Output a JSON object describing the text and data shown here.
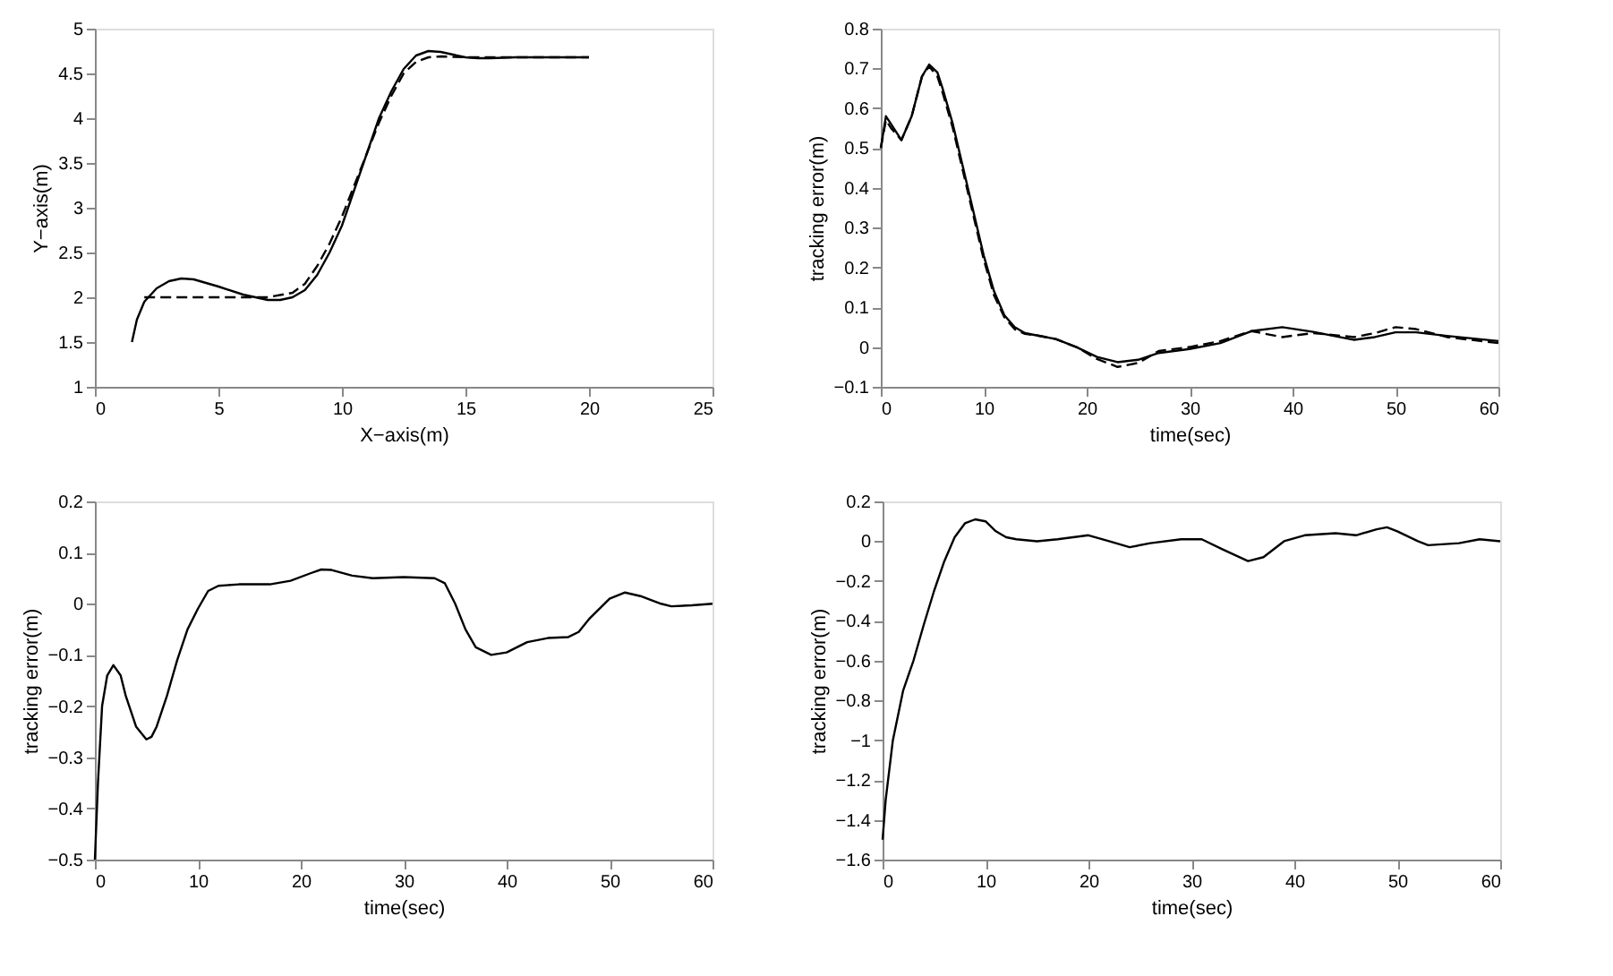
{
  "chart_data": [
    {
      "type": "line",
      "xlabel": "X−axis(m)",
      "ylabel": "Y−axis(m)",
      "xlim": [
        0,
        25
      ],
      "xticks": [
        0,
        5,
        10,
        15,
        20,
        25
      ],
      "ylim": [
        1,
        5
      ],
      "yticks": [
        1,
        1.5,
        2,
        2.5,
        3,
        3.5,
        4,
        4.5,
        5
      ],
      "grid": false,
      "legend": false,
      "series": [
        {
          "color": "#000000",
          "line_style": "solid",
          "x": [
            1.5,
            1.7,
            2,
            2.5,
            3,
            3.5,
            4,
            5,
            6,
            7,
            7.5,
            8,
            8.5,
            9,
            9.5,
            10,
            10.5,
            11,
            11.5,
            12,
            12.5,
            13,
            13.5,
            14,
            14.5,
            15,
            15.5,
            16,
            17,
            18,
            20
          ],
          "values": [
            1.5,
            1.75,
            1.95,
            2.1,
            2.18,
            2.21,
            2.2,
            2.12,
            2.03,
            1.97,
            1.97,
            2.0,
            2.08,
            2.25,
            2.5,
            2.8,
            3.2,
            3.6,
            4.0,
            4.3,
            4.55,
            4.7,
            4.75,
            4.74,
            4.71,
            4.68,
            4.67,
            4.67,
            4.68,
            4.68,
            4.68
          ]
        },
        {
          "color": "#000000",
          "line_style": "dashed",
          "x": [
            2,
            4,
            6,
            7,
            8,
            8.5,
            9,
            9.5,
            10,
            10.5,
            11,
            11.5,
            12,
            12.5,
            13,
            13.5,
            14,
            15,
            16,
            20
          ],
          "values": [
            2.0,
            2.0,
            2.0,
            2.0,
            2.05,
            2.15,
            2.35,
            2.6,
            2.9,
            3.25,
            3.6,
            3.95,
            4.25,
            4.5,
            4.63,
            4.68,
            4.69,
            4.68,
            4.68,
            4.68
          ]
        }
      ]
    },
    {
      "type": "line",
      "xlabel": "time(sec)",
      "ylabel": "tracking error(m)",
      "xlim": [
        0,
        60
      ],
      "xticks": [
        0,
        10,
        20,
        30,
        40,
        50,
        60
      ],
      "ylim": [
        -0.1,
        0.8
      ],
      "yticks": [
        -0.1,
        0,
        0.1,
        0.2,
        0.3,
        0.4,
        0.5,
        0.6,
        0.7,
        0.8
      ],
      "grid": false,
      "legend": false,
      "series": [
        {
          "color": "#000000",
          "line_style": "solid",
          "x": [
            0,
            0.5,
            1,
            2,
            3,
            4,
            4.7,
            5.5,
            6,
            7,
            8,
            9,
            10,
            11,
            12,
            13,
            14,
            15,
            17,
            19,
            21,
            23,
            25,
            27,
            30,
            33,
            36,
            39,
            42,
            46,
            48,
            50,
            52,
            55,
            60
          ],
          "values": [
            0.5,
            0.58,
            0.56,
            0.52,
            0.58,
            0.68,
            0.71,
            0.69,
            0.65,
            0.56,
            0.45,
            0.34,
            0.23,
            0.14,
            0.08,
            0.05,
            0.035,
            0.03,
            0.02,
            0.0,
            -0.025,
            -0.038,
            -0.032,
            -0.015,
            -0.005,
            0.01,
            0.04,
            0.05,
            0.038,
            0.018,
            0.025,
            0.037,
            0.037,
            0.028,
            0.015
          ]
        },
        {
          "color": "#000000",
          "line_style": "dashed",
          "x": [
            0,
            0.5,
            1,
            2,
            3,
            4,
            4.7,
            5.5,
            6,
            7,
            8,
            9,
            10,
            11,
            12,
            13,
            14,
            15,
            17,
            19,
            21,
            23,
            25,
            27,
            30,
            33,
            36,
            39,
            42,
            46,
            48,
            50,
            52,
            55,
            60
          ],
          "values": [
            0.5,
            0.57,
            0.55,
            0.52,
            0.58,
            0.68,
            0.705,
            0.68,
            0.64,
            0.55,
            0.44,
            0.33,
            0.22,
            0.13,
            0.075,
            0.045,
            0.033,
            0.03,
            0.02,
            0.0,
            -0.03,
            -0.05,
            -0.04,
            -0.01,
            0.0,
            0.015,
            0.04,
            0.025,
            0.035,
            0.025,
            0.035,
            0.05,
            0.045,
            0.025,
            0.01
          ]
        }
      ]
    },
    {
      "type": "line",
      "xlabel": "time(sec)",
      "ylabel": "tracking error(m)",
      "xlim": [
        0,
        60
      ],
      "xticks": [
        0,
        10,
        20,
        30,
        40,
        50,
        60
      ],
      "ylim": [
        -0.5,
        0.2
      ],
      "yticks": [
        -0.5,
        -0.4,
        -0.3,
        -0.2,
        -0.1,
        0,
        0.1,
        0.2
      ],
      "grid": false,
      "legend": false,
      "series": [
        {
          "color": "#000000",
          "line_style": "solid",
          "x": [
            0,
            0.3,
            0.7,
            1.2,
            1.8,
            2.5,
            3,
            4,
            5,
            5.5,
            6,
            7,
            8,
            9,
            10,
            11,
            12,
            14,
            17,
            19,
            21,
            22,
            23,
            25,
            27,
            30,
            33,
            34,
            35,
            36,
            37,
            38.5,
            40,
            42,
            44,
            46,
            47,
            48,
            50,
            51.5,
            53,
            55,
            56,
            58,
            60
          ],
          "values": [
            -0.5,
            -0.35,
            -0.2,
            -0.14,
            -0.12,
            -0.14,
            -0.18,
            -0.24,
            -0.265,
            -0.26,
            -0.24,
            -0.18,
            -0.11,
            -0.05,
            -0.01,
            0.025,
            0.035,
            0.038,
            0.038,
            0.045,
            0.06,
            0.067,
            0.066,
            0.055,
            0.05,
            0.052,
            0.05,
            0.04,
            0.0,
            -0.05,
            -0.085,
            -0.1,
            -0.095,
            -0.075,
            -0.067,
            -0.065,
            -0.055,
            -0.03,
            0.01,
            0.022,
            0.015,
            0.0,
            -0.005,
            -0.003,
            0.0
          ]
        }
      ]
    },
    {
      "type": "line",
      "xlabel": "time(sec)",
      "ylabel": "tracking error(m)",
      "xlim": [
        0,
        60
      ],
      "xticks": [
        0,
        10,
        20,
        30,
        40,
        50,
        60
      ],
      "ylim": [
        -1.6,
        0.2
      ],
      "yticks": [
        -1.6,
        -1.4,
        -1.2,
        -1,
        -0.8,
        -0.6,
        -0.4,
        -0.2,
        0,
        0.2
      ],
      "grid": false,
      "legend": false,
      "series": [
        {
          "color": "#000000",
          "line_style": "solid",
          "x": [
            0,
            0.3,
            1,
            2,
            3,
            4,
            5,
            6,
            7,
            8,
            9,
            10,
            11,
            12,
            13,
            15,
            17,
            20,
            22,
            24,
            26,
            29,
            31,
            33,
            35.5,
            37,
            39,
            41,
            44,
            46,
            48,
            49,
            50,
            52,
            53,
            56,
            58,
            60
          ],
          "values": [
            -1.5,
            -1.3,
            -1.0,
            -0.75,
            -0.6,
            -0.42,
            -0.25,
            -0.1,
            0.02,
            0.09,
            0.11,
            0.1,
            0.05,
            0.02,
            0.01,
            0.0,
            0.01,
            0.03,
            0.0,
            -0.03,
            -0.01,
            0.01,
            0.01,
            -0.04,
            -0.1,
            -0.08,
            0.0,
            0.03,
            0.04,
            0.03,
            0.06,
            0.07,
            0.05,
            0.0,
            -0.02,
            -0.01,
            0.01,
            0.0
          ]
        }
      ]
    }
  ]
}
